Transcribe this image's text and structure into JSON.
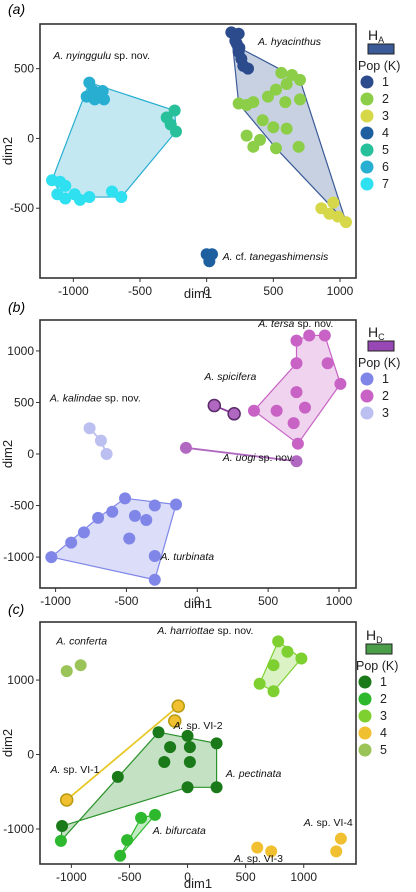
{
  "chart_data": [
    {
      "panel": "(a)",
      "type": "scatter",
      "xlabel": "dim1",
      "ylabel": "dim2",
      "xlim": [
        -1250,
        1120
      ],
      "ylim": [
        -1000,
        820
      ],
      "xticks": [
        -1000,
        -500,
        0,
        500,
        1000
      ],
      "yticks": [
        -500,
        0,
        500
      ],
      "legend": {
        "title": "H",
        "title_sub": "A",
        "swatch": "#3a5a98",
        "pop_label": "Pop (K)",
        "placement": "right"
      },
      "series": [
        {
          "name": "1",
          "color": "#2c4b8c",
          "points": [
            [
              185,
              760
            ],
            [
              240,
              750
            ],
            [
              215,
              700
            ],
            [
              240,
              620
            ],
            [
              260,
              570
            ],
            [
              275,
              520
            ],
            [
              310,
              500
            ],
            [
              245,
              650
            ],
            [
              225,
              680
            ]
          ]
        },
        {
          "name": "2",
          "color": "#8cce48",
          "points": [
            [
              560,
              470
            ],
            [
              640,
              455
            ],
            [
              600,
              390
            ],
            [
              700,
              420
            ],
            [
              520,
              350
            ],
            [
              460,
              300
            ],
            [
              240,
              250
            ],
            [
              300,
              240
            ],
            [
              350,
              260
            ],
            [
              590,
              260
            ],
            [
              700,
              280
            ],
            [
              420,
              130
            ],
            [
              500,
              80
            ],
            [
              600,
              70
            ],
            [
              300,
              20
            ],
            [
              400,
              -10
            ],
            [
              350,
              -60
            ],
            [
              520,
              -70
            ],
            [
              690,
              -60
            ]
          ]
        },
        {
          "name": "3",
          "color": "#d6d84a",
          "points": [
            [
              860,
              -500
            ],
            [
              920,
              -540
            ],
            [
              985,
              -560
            ],
            [
              1045,
              -600
            ],
            [
              950,
              -460
            ]
          ]
        },
        {
          "name": "4",
          "color": "#1e5fa0",
          "points": [
            [
              0,
              -830
            ],
            [
              40,
              -830
            ],
            [
              20,
              -880
            ]
          ]
        },
        {
          "name": "5",
          "color": "#28c09a",
          "points": [
            [
              -240,
              200
            ],
            [
              -300,
              150
            ],
            [
              -270,
              100
            ],
            [
              -230,
              50
            ]
          ]
        },
        {
          "name": "6",
          "color": "#27aed0",
          "points": [
            [
              -880,
              400
            ],
            [
              -850,
              340
            ],
            [
              -780,
              340
            ],
            [
              -900,
              300
            ],
            [
              -840,
              280
            ],
            [
              -770,
              280
            ]
          ]
        },
        {
          "name": "7",
          "color": "#2ee0f0",
          "points": [
            [
              -1160,
              -300
            ],
            [
              -1100,
              -310
            ],
            [
              -1060,
              -340
            ],
            [
              -1120,
              -400
            ],
            [
              -1060,
              -430
            ],
            [
              -990,
              -400
            ],
            [
              -950,
              -440
            ],
            [
              -880,
              -420
            ],
            [
              -710,
              -380
            ],
            [
              -640,
              -420
            ]
          ]
        }
      ],
      "hulls": [
        {
          "series": "1-2",
          "fill": "#3a5a98",
          "stroke": "#3a5a98",
          "vertices": [
            [
              185,
              760
            ],
            [
              245,
              650
            ],
            [
              700,
              420
            ],
            [
              1045,
              -600
            ],
            [
              520,
              -70
            ],
            [
              240,
              250
            ]
          ]
        },
        {
          "series": "5-7",
          "fill": "#27aed0",
          "stroke": "#27aed0",
          "vertices": [
            [
              -880,
              400
            ],
            [
              -240,
              200
            ],
            [
              -230,
              50
            ],
            [
              -640,
              -420
            ],
            [
              -880,
              -420
            ],
            [
              -1060,
              -430
            ],
            [
              -1160,
              -300
            ]
          ]
        }
      ],
      "annotations": [
        {
          "text": "A. nyinggulu",
          "suffix": " sp. nov.",
          "x": -1150,
          "y": 570
        },
        {
          "text": "A. hyacinthus",
          "suffix": "",
          "x": 385,
          "y": 670
        },
        {
          "text": "A.",
          "suffix": " cf. ",
          "extra": "tanegashimensis",
          "x": 120,
          "y": -870
        }
      ]
    },
    {
      "panel": "(b)",
      "type": "scatter",
      "xlabel": "dim1",
      "ylabel": "dim2",
      "xlim": [
        -1110,
        1120
      ],
      "ylim": [
        -1300,
        1300
      ],
      "xticks": [
        -1000,
        -500,
        0,
        500,
        1000
      ],
      "yticks": [
        -1000,
        -500,
        0,
        500,
        1000
      ],
      "legend": {
        "title": "H",
        "title_sub": "C",
        "swatch": "#9848b4",
        "pop_label": "Pop (K)",
        "placement": "right"
      },
      "series": [
        {
          "name": "1",
          "color": "#7f86e8",
          "points": [
            [
              -1030,
              -1000
            ],
            [
              -890,
              -860
            ],
            [
              -800,
              -760
            ],
            [
              -700,
              -620
            ],
            [
              -600,
              -560
            ],
            [
              -510,
              -430
            ],
            [
              -440,
              -600
            ],
            [
              -300,
              -500
            ],
            [
              -150,
              -490
            ],
            [
              -360,
              -640
            ],
            [
              -480,
              -820
            ],
            [
              -300,
              -990
            ],
            [
              -300,
              -1220
            ]
          ]
        },
        {
          "name": "2",
          "color": "#c862c4",
          "points": [
            [
              700,
              1100
            ],
            [
              790,
              1150
            ],
            [
              900,
              1150
            ],
            [
              700,
              880
            ],
            [
              920,
              880
            ],
            [
              1010,
              680
            ],
            [
              700,
              600
            ],
            [
              760,
              450
            ],
            [
              560,
              420
            ],
            [
              680,
              300
            ],
            [
              710,
              100
            ],
            [
              400,
              420
            ]
          ]
        },
        {
          "name": "3",
          "color": "#bcc0f0",
          "points": [
            [
              -760,
              250
            ],
            [
              -680,
              130
            ],
            [
              -640,
              0
            ]
          ]
        },
        {
          "name": "spic",
          "color": "#b068c0",
          "points": [
            [
              120,
              470
            ],
            [
              260,
              390
            ]
          ]
        },
        {
          "name": "uogi",
          "color": "#b068c0",
          "points": [
            [
              -80,
              60
            ],
            [
              700,
              -70
            ]
          ]
        }
      ],
      "hulls": [
        {
          "series": "1",
          "fill": "#7f86e8",
          "stroke": "#7f86e8",
          "vertices": [
            [
              -1030,
              -1000
            ],
            [
              -700,
              -620
            ],
            [
              -510,
              -430
            ],
            [
              -150,
              -490
            ],
            [
              -300,
              -1220
            ]
          ]
        },
        {
          "series": "2",
          "fill": "#c862c4",
          "stroke": "#c862c4",
          "vertices": [
            [
              790,
              1150
            ],
            [
              900,
              1150
            ],
            [
              1010,
              680
            ],
            [
              710,
              100
            ],
            [
              400,
              420
            ],
            [
              700,
              880
            ],
            [
              700,
              1100
            ]
          ]
        }
      ],
      "lines": [
        {
          "color": "#bcc0f0",
          "points": [
            [
              -760,
              250
            ],
            [
              -680,
              130
            ],
            [
              -640,
              0
            ]
          ]
        },
        {
          "color": "#8a3a9a",
          "points": [
            [
              120,
              470
            ],
            [
              260,
              390
            ]
          ]
        },
        {
          "color": "#b068c0",
          "points": [
            [
              -80,
              60
            ],
            [
              700,
              -70
            ]
          ]
        }
      ],
      "annotations": [
        {
          "text": "A. tersa",
          "suffix": " sp. nov.",
          "x": 430,
          "y": 1230
        },
        {
          "text": "A. spicifera",
          "suffix": "",
          "x": 50,
          "y": 720
        },
        {
          "text": "A. kalindae",
          "suffix": " sp. nov.",
          "x": -1040,
          "y": 510
        },
        {
          "text": "A. uogi",
          "suffix": " sp. nov.",
          "x": 180,
          "y": -70
        },
        {
          "text": "A. turbinata",
          "suffix": "",
          "x": -260,
          "y": -1030
        }
      ]
    },
    {
      "panel": "(c)",
      "type": "scatter",
      "xlabel": "dim1",
      "ylabel": "dim2",
      "xlim": [
        -1270,
        1450
      ],
      "ylim": [
        -1470,
        1780
      ],
      "xticks": [
        -1000,
        -500,
        0,
        500,
        1000
      ],
      "yticks": [
        -1000,
        0,
        1000
      ],
      "legend": {
        "title": "H",
        "title_sub": "D",
        "swatch": "#4a9e4a",
        "pop_label": "Pop (K)",
        "placement": "right"
      },
      "series": [
        {
          "name": "1",
          "color": "#1a7a1a",
          "points": [
            [
              -250,
              300
            ],
            [
              -150,
              100
            ],
            [
              0,
              250
            ],
            [
              20,
              100
            ],
            [
              20,
              -100
            ],
            [
              -200,
              -100
            ],
            [
              -600,
              -300
            ],
            [
              0,
              -440
            ],
            [
              250,
              -440
            ],
            [
              250,
              150
            ],
            [
              -1080,
              -960
            ]
          ]
        },
        {
          "name": "2",
          "color": "#2eb82e",
          "points": [
            [
              -1090,
              -1160
            ],
            [
              -580,
              -1360
            ],
            [
              -400,
              -850
            ],
            [
              -280,
              -810
            ],
            [
              -520,
              -1150
            ]
          ]
        },
        {
          "name": "3",
          "color": "#7ed030",
          "points": [
            [
              780,
              1520
            ],
            [
              860,
              1380
            ],
            [
              980,
              1290
            ],
            [
              740,
              1200
            ],
            [
              620,
              950
            ],
            [
              740,
              850
            ]
          ]
        },
        {
          "name": "4",
          "color": "#f0c030",
          "points": [
            [
              -80,
              650
            ],
            [
              -110,
              450
            ],
            [
              -1040,
              -610
            ],
            [
              600,
              -1250
            ],
            [
              720,
              -1300
            ],
            [
              1320,
              -1130
            ],
            [
              1280,
              -1300
            ]
          ]
        },
        {
          "name": "5",
          "color": "#9ac458",
          "points": [
            [
              -1040,
              1120
            ],
            [
              -920,
              1200
            ]
          ]
        }
      ],
      "hulls": [
        {
          "series": "1-2 (A. pectinata)",
          "fill": "#2a922a",
          "stroke": "#2a922a",
          "vertices": [
            [
              -250,
              300
            ],
            [
              250,
              150
            ],
            [
              250,
              -440
            ],
            [
              0,
              -440
            ],
            [
              -1080,
              -960
            ],
            [
              -1090,
              -1160
            ]
          ]
        },
        {
          "series": "2 (A. bifurcata)",
          "fill": "#2eb82e",
          "stroke": "#2eb82e",
          "vertices": [
            [
              -400,
              -850
            ],
            [
              -280,
              -810
            ],
            [
              -580,
              -1360
            ]
          ]
        },
        {
          "series": "3",
          "fill": "#7ed030",
          "stroke": "#7ed030",
          "vertices": [
            [
              780,
              1520
            ],
            [
              980,
              1290
            ],
            [
              740,
              850
            ],
            [
              620,
              950
            ]
          ]
        }
      ],
      "lines": [
        {
          "color": "#e8c828",
          "points": [
            [
              -80,
              650
            ],
            [
              -1040,
              -610
            ]
          ]
        }
      ],
      "annotations": [
        {
          "text": "A. conferta",
          "suffix": "",
          "x": -1130,
          "y": 1480
        },
        {
          "text": "A. harriottae",
          "suffix": " sp. nov.",
          "x": -260,
          "y": 1620
        },
        {
          "text": "A.",
          "suffix": " sp. VI-2",
          "x": -120,
          "y": 340
        },
        {
          "text": "A.",
          "suffix": " sp. VI-1",
          "x": -1180,
          "y": -250
        },
        {
          "text": "A. pectinata",
          "suffix": "",
          "x": 330,
          "y": -300
        },
        {
          "text": "A. bifurcata",
          "suffix": "",
          "x": -300,
          "y": -1070
        },
        {
          "text": "A.",
          "suffix": " sp. VI-3",
          "x": 400,
          "y": -1440
        },
        {
          "text": "A.",
          "suffix": " sp. VI-4",
          "x": 1000,
          "y": -960
        }
      ]
    }
  ]
}
